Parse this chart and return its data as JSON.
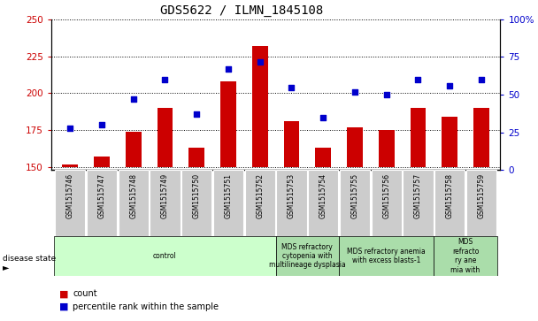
{
  "title": "GDS5622 / ILMN_1845108",
  "samples": [
    "GSM1515746",
    "GSM1515747",
    "GSM1515748",
    "GSM1515749",
    "GSM1515750",
    "GSM1515751",
    "GSM1515752",
    "GSM1515753",
    "GSM1515754",
    "GSM1515755",
    "GSM1515756",
    "GSM1515757",
    "GSM1515758",
    "GSM1515759"
  ],
  "counts": [
    152,
    157,
    174,
    190,
    163,
    208,
    232,
    181,
    163,
    177,
    175,
    190,
    184,
    190
  ],
  "percentile_ranks": [
    28,
    30,
    47,
    60,
    37,
    67,
    72,
    55,
    35,
    52,
    50,
    60,
    56,
    60
  ],
  "ylim_left": [
    148,
    250
  ],
  "ylim_right": [
    0,
    100
  ],
  "yticks_left": [
    150,
    175,
    200,
    225,
    250
  ],
  "yticks_right": [
    0,
    25,
    50,
    75,
    100
  ],
  "bar_color": "#cc0000",
  "dot_color": "#0000cc",
  "bar_bottom": 150,
  "group_bounds": [
    {
      "start": 0,
      "end": 7,
      "label": "control",
      "color": "#ccffcc"
    },
    {
      "start": 7,
      "end": 9,
      "label": "MDS refractory\ncytopenia with\nmultilineage dysplasia",
      "color": "#aaddaa"
    },
    {
      "start": 9,
      "end": 12,
      "label": "MDS refractory anemia\nwith excess blasts-1",
      "color": "#aaddaa"
    },
    {
      "start": 12,
      "end": 14,
      "label": "MDS\nrefracto\nry ane\nmia with",
      "color": "#aaddaa"
    }
  ]
}
